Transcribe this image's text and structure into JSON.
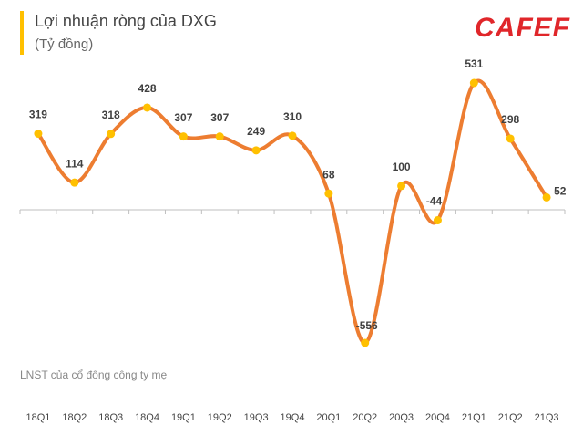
{
  "chart_data": {
    "type": "line",
    "title": "Lợi nhuận ròng của DXG",
    "subtitle": "(Tỷ đồng)",
    "logo": "CAFEF",
    "note": "LNST của cổ đông công ty mẹ",
    "categories": [
      "18Q1",
      "18Q2",
      "18Q3",
      "18Q4",
      "19Q1",
      "19Q2",
      "19Q3",
      "19Q4",
      "20Q1",
      "20Q2",
      "20Q3",
      "20Q4",
      "21Q1",
      "21Q2",
      "21Q3"
    ],
    "values": [
      319,
      114,
      318,
      428,
      307,
      307,
      249,
      310,
      68,
      -556,
      100,
      -44,
      531,
      298,
      52
    ],
    "color": "#ed7d31",
    "marker_color": "#ffc000"
  }
}
